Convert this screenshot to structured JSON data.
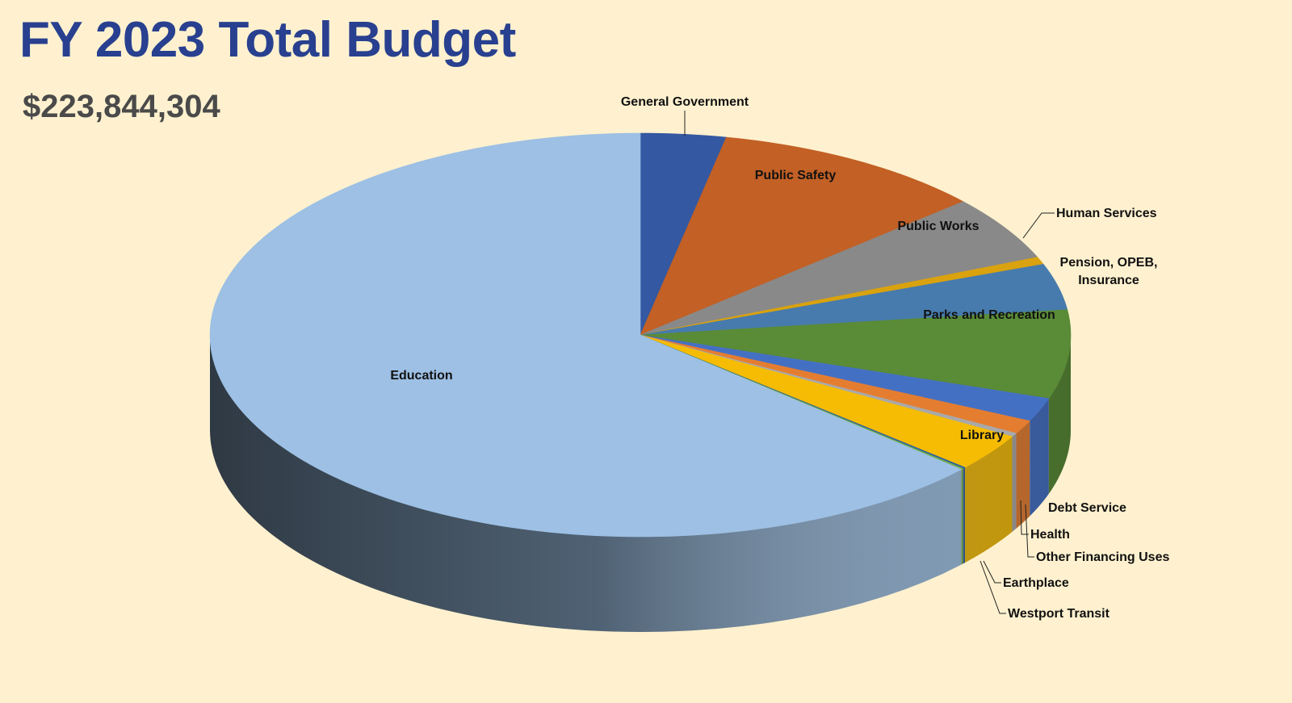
{
  "header": {
    "title": "FY 2023 Total Budget",
    "total": "$223,844,304"
  },
  "chart_data": {
    "type": "pie",
    "title": "FY 2023 Total Budget",
    "subtitle": "$223,844,304",
    "slices": [
      {
        "label": "General Government",
        "percent": 3.2,
        "color": "#3458a1"
      },
      {
        "label": "Public Safety",
        "percent": 10.3,
        "color": "#c26025"
      },
      {
        "label": "Public Works",
        "percent": 5.2,
        "color": "#898989"
      },
      {
        "label": "Human Services",
        "percent": 0.6,
        "color": "#d9a20e"
      },
      {
        "label": "Pension, OPEB, Insurance",
        "percent": 3.7,
        "color": "#477bad"
      },
      {
        "label": "Parks and Recreation",
        "percent": 7.1,
        "color": "#5a8b37"
      },
      {
        "label": "Debt Service",
        "percent": 1.9,
        "color": "#4470c4"
      },
      {
        "label": "Health",
        "percent": 1.1,
        "color": "#e57d30"
      },
      {
        "label": "Other Financing Uses",
        "percent": 0.3,
        "color": "#a9a9a9"
      },
      {
        "label": "Library",
        "percent": 3.0,
        "color": "#f6bc04"
      },
      {
        "label": "Earthplace",
        "percent": 0.1,
        "color": "#2a5fa8"
      },
      {
        "label": "Westport Transit",
        "percent": 0.1,
        "color": "#70ad47"
      },
      {
        "label": "Education",
        "percent": 63.4,
        "color": "#9dc0e4"
      }
    ],
    "legend": "none"
  }
}
